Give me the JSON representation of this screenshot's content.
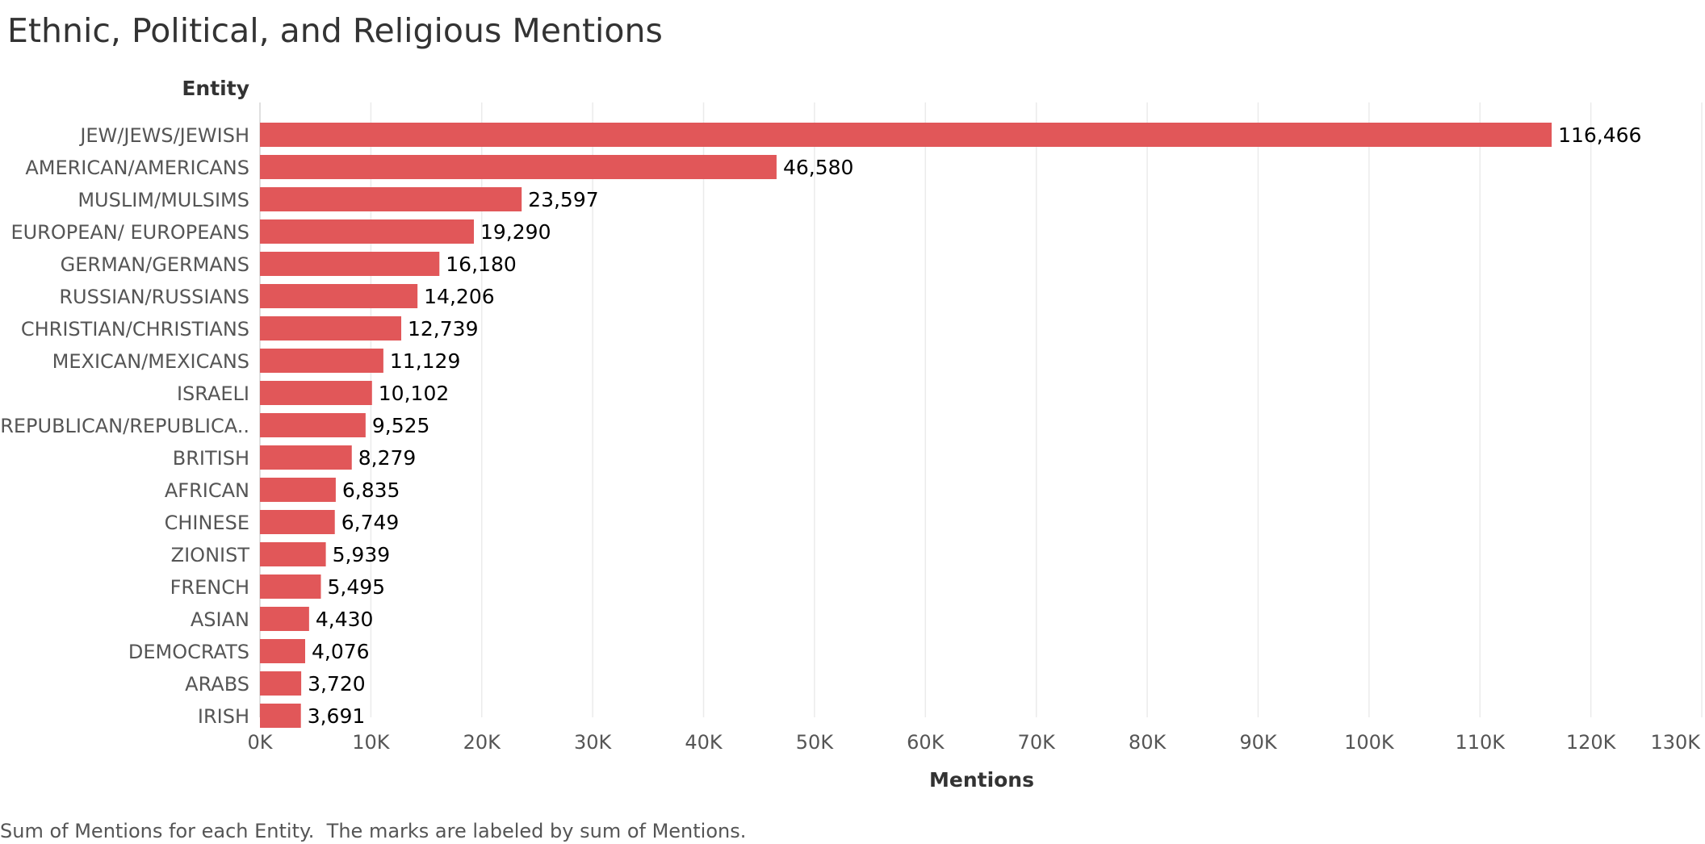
{
  "page": {
    "title": "Ethnic, Political, and Religious Mentions",
    "footnote": "Sum of Mentions for each Entity.  The marks are labeled by sum of Mentions."
  },
  "colors": {
    "bar": "#e15759",
    "grid": "#ebebeb",
    "axis_text": "#555555",
    "label_text": "#000000"
  },
  "chart_data": {
    "type": "bar",
    "orientation": "horizontal",
    "title": "Ethnic, Political, and Religious Mentions",
    "xlabel": "Mentions",
    "ylabel": "Entity",
    "xlim": [
      0,
      130000
    ],
    "xticks": [
      0,
      10000,
      20000,
      30000,
      40000,
      50000,
      60000,
      70000,
      80000,
      90000,
      100000,
      110000,
      120000,
      130000
    ],
    "xtick_labels": [
      "0K",
      "10K",
      "20K",
      "30K",
      "40K",
      "50K",
      "60K",
      "70K",
      "80K",
      "90K",
      "100K",
      "110K",
      "120K",
      "130K"
    ],
    "grid": true,
    "categories": [
      "JEW/JEWS/JEWISH",
      "AMERICAN/AMERICANS",
      "MUSLIM/MULSIMS",
      "EUROPEAN/  EUROPEANS",
      "GERMAN/GERMANS",
      "RUSSIAN/RUSSIANS",
      "CHRISTIAN/CHRISTIANS",
      "MEXICAN/MEXICANS",
      "ISRAELI",
      "REPUBLICAN/REPUBLICA..",
      "BRITISH",
      "AFRICAN",
      "CHINESE",
      "ZIONIST",
      "FRENCH",
      "ASIAN",
      "DEMOCRATS",
      "ARABS",
      "IRISH"
    ],
    "values": [
      116466,
      46580,
      23597,
      19290,
      16180,
      14206,
      12739,
      11129,
      10102,
      9525,
      8279,
      6835,
      6749,
      5939,
      5495,
      4430,
      4076,
      3720,
      3691
    ],
    "value_labels": [
      "116,466",
      "46,580",
      "23,597",
      "19,290",
      "16,180",
      "14,206",
      "12,739",
      "11,129",
      "10,102",
      "9,525",
      "8,279",
      "6,835",
      "6,749",
      "5,939",
      "5,495",
      "4,430",
      "4,076",
      "3,720",
      "3,691"
    ]
  }
}
